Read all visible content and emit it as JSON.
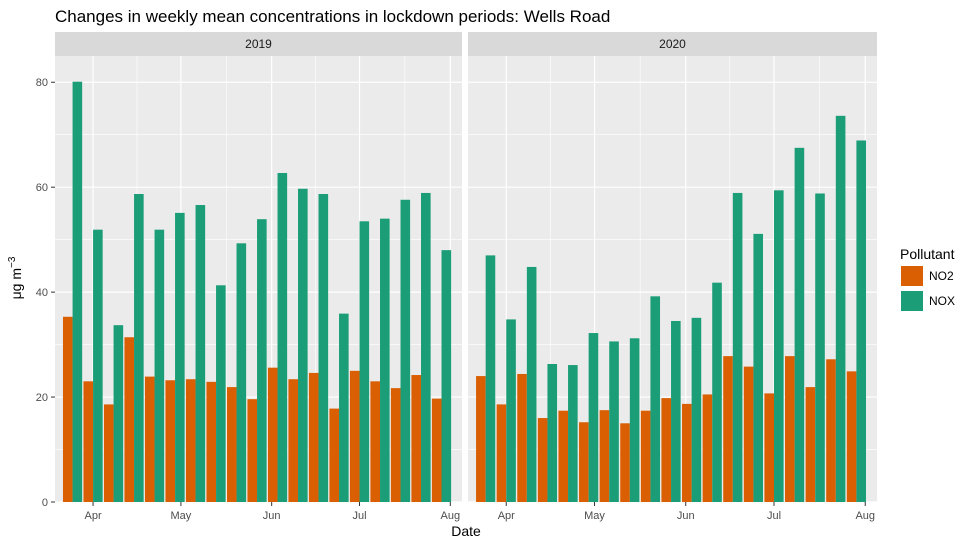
{
  "chart_data": {
    "type": "bar",
    "title": "Changes in weekly mean concentrations in lockdown periods: Wells Road",
    "xlabel": "Date",
    "ylabel": "μg m",
    "ylabel_superscript": "−3",
    "ylim": [
      0,
      85
    ],
    "yticks": [
      0,
      20,
      40,
      60,
      80
    ],
    "grid": true,
    "legend": {
      "title": "Pollutant",
      "position": "right",
      "entries": [
        {
          "name": "NO2",
          "color": "#D95F02"
        },
        {
          "name": "NOX",
          "color": "#1B9E77"
        }
      ]
    },
    "panels": [
      {
        "label": "2019",
        "x_range": [
          "2019-03-19",
          "2019-08-05"
        ],
        "x_ticks": [
          {
            "label": "Apr",
            "date": "2019-04-01"
          },
          {
            "label": "May",
            "date": "2019-05-01"
          },
          {
            "label": "Jun",
            "date": "2019-06-01"
          },
          {
            "label": "Jul",
            "date": "2019-07-01"
          },
          {
            "label": "Aug",
            "date": "2019-08-01"
          }
        ],
        "weeks": [
          "2019-03-25",
          "2019-04-01",
          "2019-04-08",
          "2019-04-15",
          "2019-04-22",
          "2019-04-29",
          "2019-05-06",
          "2019-05-13",
          "2019-05-20",
          "2019-05-27",
          "2019-06-03",
          "2019-06-10",
          "2019-06-17",
          "2019-06-24",
          "2019-07-01",
          "2019-07-08",
          "2019-07-15",
          "2019-07-22",
          "2019-07-29"
        ],
        "series": [
          {
            "name": "NO2",
            "values": [
              35.3,
              23.0,
              18.6,
              31.4,
              23.9,
              23.2,
              23.4,
              22.9,
              21.9,
              19.6,
              25.6,
              23.4,
              24.6,
              17.8,
              25.0,
              23.0,
              21.7,
              24.2,
              19.7
            ]
          },
          {
            "name": "NOX",
            "values": [
              80.1,
              51.9,
              33.7,
              58.7,
              51.9,
              55.1,
              56.6,
              41.3,
              49.3,
              53.9,
              62.7,
              59.7,
              58.7,
              35.9,
              53.5,
              54.0,
              57.6,
              58.9,
              48.0
            ]
          }
        ]
      },
      {
        "label": "2020",
        "x_range": [
          "2020-03-19",
          "2020-08-05"
        ],
        "x_ticks": [
          {
            "label": "Apr",
            "date": "2020-04-01"
          },
          {
            "label": "May",
            "date": "2020-05-01"
          },
          {
            "label": "Jun",
            "date": "2020-06-01"
          },
          {
            "label": "Jul",
            "date": "2020-07-01"
          },
          {
            "label": "Aug",
            "date": "2020-08-01"
          }
        ],
        "weeks": [
          "2020-03-25",
          "2020-04-01",
          "2020-04-08",
          "2020-04-15",
          "2020-04-22",
          "2020-04-29",
          "2020-05-06",
          "2020-05-13",
          "2020-05-20",
          "2020-05-27",
          "2020-06-03",
          "2020-06-10",
          "2020-06-17",
          "2020-06-24",
          "2020-07-01",
          "2020-07-08",
          "2020-07-15",
          "2020-07-22",
          "2020-07-29"
        ],
        "series": [
          {
            "name": "NO2",
            "values": [
              24.0,
              18.6,
              24.4,
              16.0,
              17.4,
              15.2,
              17.5,
              15.0,
              17.4,
              19.8,
              18.7,
              20.5,
              27.8,
              25.8,
              20.7,
              27.8,
              21.9,
              27.2,
              24.9
            ]
          },
          {
            "name": "NOX",
            "values": [
              47.0,
              34.8,
              44.8,
              26.3,
              26.1,
              32.2,
              30.6,
              31.2,
              39.2,
              34.5,
              35.1,
              41.8,
              58.9,
              51.1,
              59.4,
              67.5,
              58.8,
              73.6,
              68.9
            ]
          }
        ]
      }
    ]
  }
}
